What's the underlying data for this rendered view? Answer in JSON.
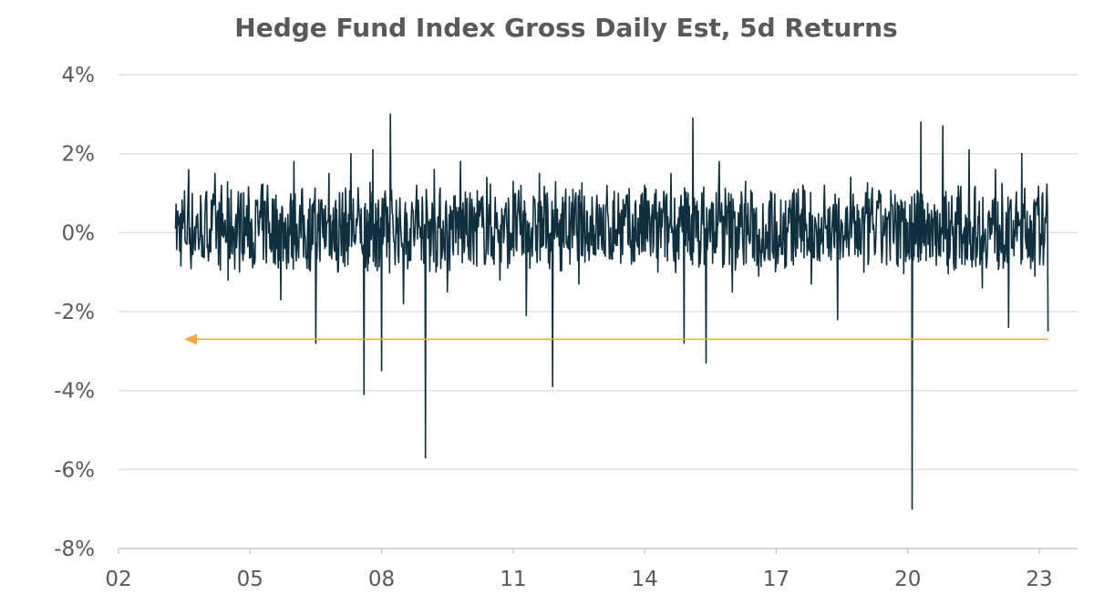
{
  "title": "Hedge Fund Index Gross Daily Est, 5d Returns",
  "colors": {
    "series": "#0f2f3f",
    "grid": "#d9d9d9",
    "axis": "#bfbfbf",
    "reference_arrow": "#f2a93b",
    "text": "#595959"
  },
  "chart_data": {
    "type": "line",
    "title": "Hedge Fund Index Gross Daily Est, 5d Returns",
    "xlabel": "",
    "ylabel": "",
    "x_tick_labels": [
      "02",
      "05",
      "08",
      "11",
      "14",
      "17",
      "20",
      "23"
    ],
    "x_tick_years": [
      2002,
      2005,
      2008,
      2011,
      2014,
      2017,
      2020,
      2023
    ],
    "y_tick_labels": [
      "4%",
      "2%",
      "0%",
      "-2%",
      "-4%",
      "-6%",
      "-8%"
    ],
    "y_tick_values": [
      4,
      2,
      0,
      -2,
      -4,
      -6,
      -8
    ],
    "xlim": [
      2002,
      2023.3
    ],
    "ylim": [
      -8,
      4
    ],
    "grid": "horizontal",
    "legend": "none",
    "series": [
      {
        "values_unit": "%",
        "x": [
          2003.3,
          2003.6,
          2003.9,
          2004.2,
          2004.5,
          2004.8,
          2005.1,
          2005.4,
          2005.7,
          2006.0,
          2006.3,
          2006.5,
          2006.8,
          2007.0,
          2007.3,
          2007.6,
          2007.8,
          2008.0,
          2008.2,
          2008.5,
          2008.8,
          2009.0,
          2009.2,
          2009.5,
          2009.8,
          2010.1,
          2010.4,
          2010.7,
          2011.0,
          2011.3,
          2011.6,
          2011.9,
          2012.2,
          2012.5,
          2012.8,
          2013.1,
          2013.4,
          2013.7,
          2014.0,
          2014.3,
          2014.6,
          2014.9,
          2015.1,
          2015.4,
          2015.7,
          2016.0,
          2016.3,
          2016.6,
          2016.9,
          2017.2,
          2017.5,
          2017.8,
          2018.1,
          2018.4,
          2018.7,
          2019.0,
          2019.3,
          2019.6,
          2019.9,
          2020.1,
          2020.3,
          2020.5,
          2020.8,
          2021.1,
          2021.4,
          2021.7,
          2022.0,
          2022.3,
          2022.6,
          2022.9,
          2023.2
        ],
        "values": [
          0.1,
          1.6,
          -0.6,
          1.5,
          -1.2,
          1.0,
          -0.8,
          1.2,
          -1.7,
          1.8,
          -0.9,
          -2.8,
          1.5,
          -1.0,
          2.0,
          -4.1,
          2.1,
          -3.5,
          3.0,
          -1.8,
          1.2,
          -5.7,
          1.6,
          -1.5,
          1.8,
          -0.8,
          1.4,
          -1.2,
          1.3,
          -2.1,
          1.5,
          -3.9,
          1.1,
          -1.3,
          0.9,
          -0.6,
          1.0,
          -0.8,
          1.2,
          -1.0,
          1.5,
          -2.8,
          2.9,
          -3.3,
          1.8,
          -1.5,
          1.3,
          -1.1,
          1.0,
          -0.9,
          1.1,
          -1.3,
          1.2,
          -2.2,
          1.4,
          -1.0,
          0.8,
          -0.7,
          0.6,
          -7.0,
          2.8,
          -0.6,
          2.7,
          -0.9,
          2.1,
          -1.4,
          1.6,
          -2.4,
          2.0,
          -1.1,
          -2.5
        ]
      }
    ],
    "annotations": [
      {
        "type": "horizontal-arrow",
        "y": -2.7,
        "x_from": 2023.2,
        "x_to": 2003.5,
        "direction": "left"
      }
    ]
  }
}
